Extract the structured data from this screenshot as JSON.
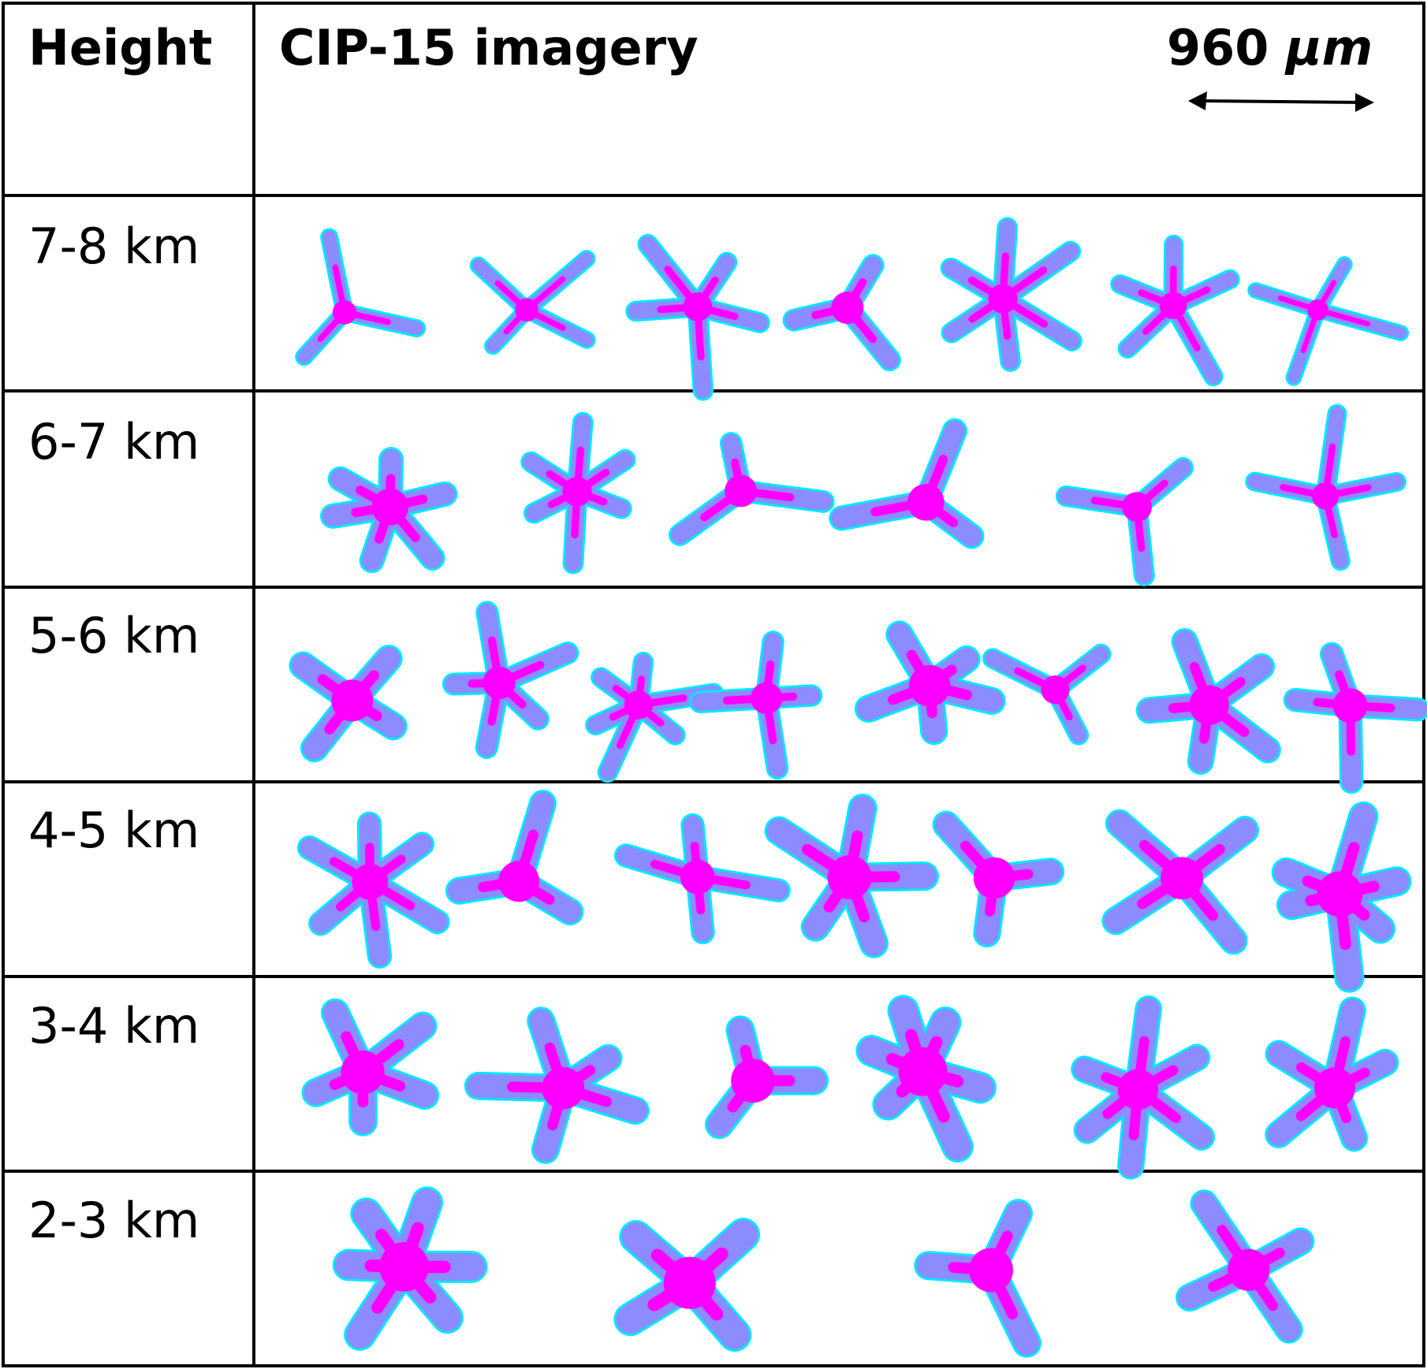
{
  "header": {
    "height_label": "Height",
    "imagery_label": "CIP-15 imagery",
    "scale_bar": {
      "value": "960",
      "unit": "μm"
    }
  },
  "rows": [
    {
      "label": "7-8 km",
      "crystal_count": 7
    },
    {
      "label": "6-7 km",
      "crystal_count": 6
    },
    {
      "label": "5-6 km",
      "crystal_count": 8
    },
    {
      "label": "4-5 km",
      "crystal_count": 7
    },
    {
      "label": "3-4 km",
      "crystal_count": 6
    },
    {
      "label": "2-3 km",
      "crystal_count": 4
    }
  ],
  "colors": {
    "crystal_body": "#8c8cff",
    "crystal_core": "#ff00ff",
    "crystal_edge": "#00e8ff",
    "border": "#000000"
  }
}
